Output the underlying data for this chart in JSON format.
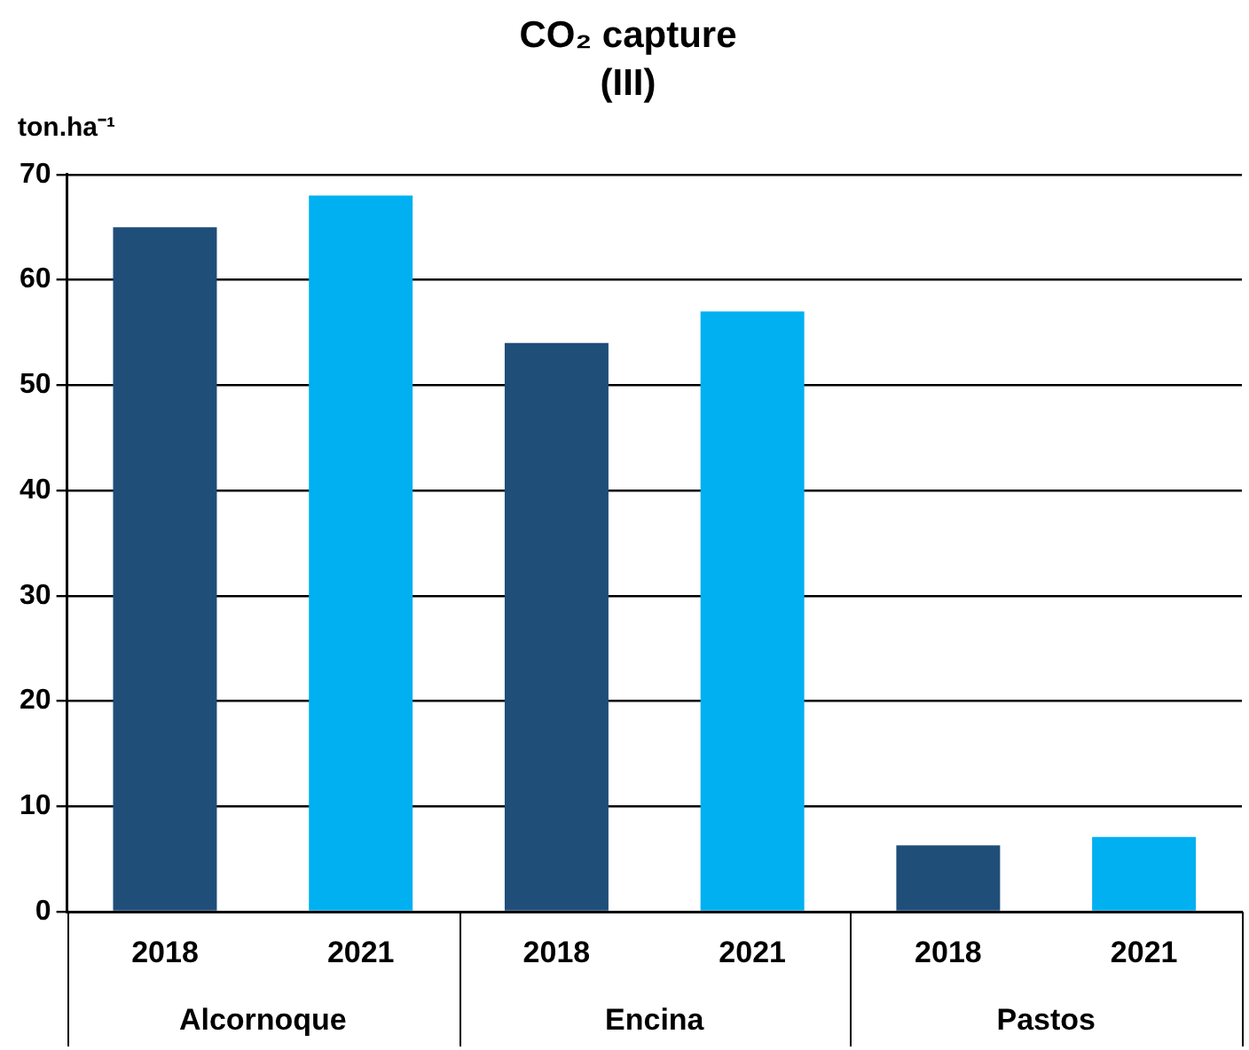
{
  "chart_data": {
    "type": "bar",
    "title": "CO₂ capture",
    "subtitle": "(III)",
    "ylabel": "ton.ha⁻¹",
    "categories": [
      "Alcornoque",
      "Encina",
      "Pastos"
    ],
    "series": [
      {
        "name": "2018",
        "color": "#1f4e79",
        "values": [
          65,
          54,
          6.3
        ]
      },
      {
        "name": "2021",
        "color": "#00b0f0",
        "values": [
          68,
          57,
          7.1
        ]
      }
    ],
    "ylim": [
      0,
      70
    ],
    "yticks": [
      0,
      10,
      20,
      30,
      40,
      50,
      60,
      70
    ],
    "grid": "y",
    "legend": false
  }
}
